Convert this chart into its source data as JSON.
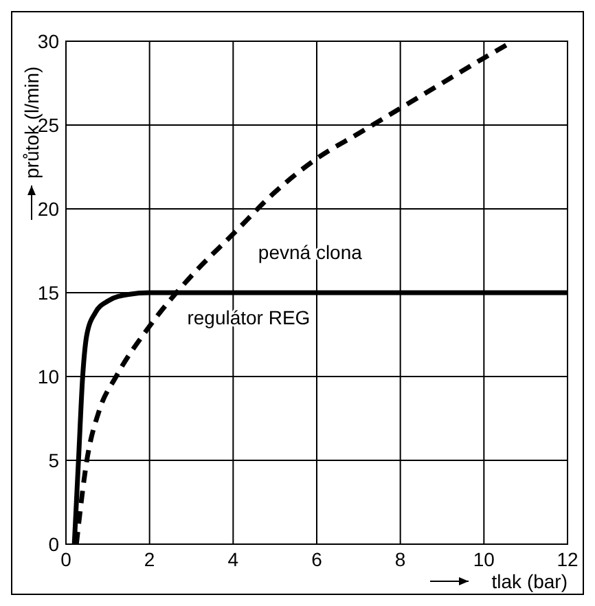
{
  "chart_data": {
    "type": "line",
    "xlabel": "tlak (bar)",
    "ylabel": "průtok (l/min)",
    "xlim": [
      0,
      12
    ],
    "ylim": [
      0,
      30
    ],
    "xticks": [
      0,
      2,
      4,
      6,
      8,
      10,
      12
    ],
    "yticks": [
      0,
      5,
      10,
      15,
      20,
      25,
      30
    ],
    "grid": true,
    "marker": "none",
    "series": [
      {
        "name": "regulátor REG",
        "color": "#000000",
        "line_style": "solid",
        "x": [
          0.2,
          0.3,
          0.4,
          0.5,
          0.7,
          1,
          1.5,
          2,
          4,
          6,
          8,
          10,
          12
        ],
        "values": [
          0,
          5,
          10,
          12.5,
          13.8,
          14.5,
          14.9,
          15,
          15,
          15,
          15,
          15,
          15
        ]
      },
      {
        "name": "pevná clona",
        "color": "#000000",
        "line_style": "dashed",
        "x": [
          0.25,
          0.5,
          0.8,
          1.2,
          2,
          3,
          4,
          5,
          6,
          7,
          8,
          9,
          10,
          10.7
        ],
        "values": [
          0,
          5,
          8,
          10,
          13,
          16,
          18.5,
          21,
          23,
          24.5,
          26,
          27.5,
          29,
          30
        ]
      }
    ]
  }
}
